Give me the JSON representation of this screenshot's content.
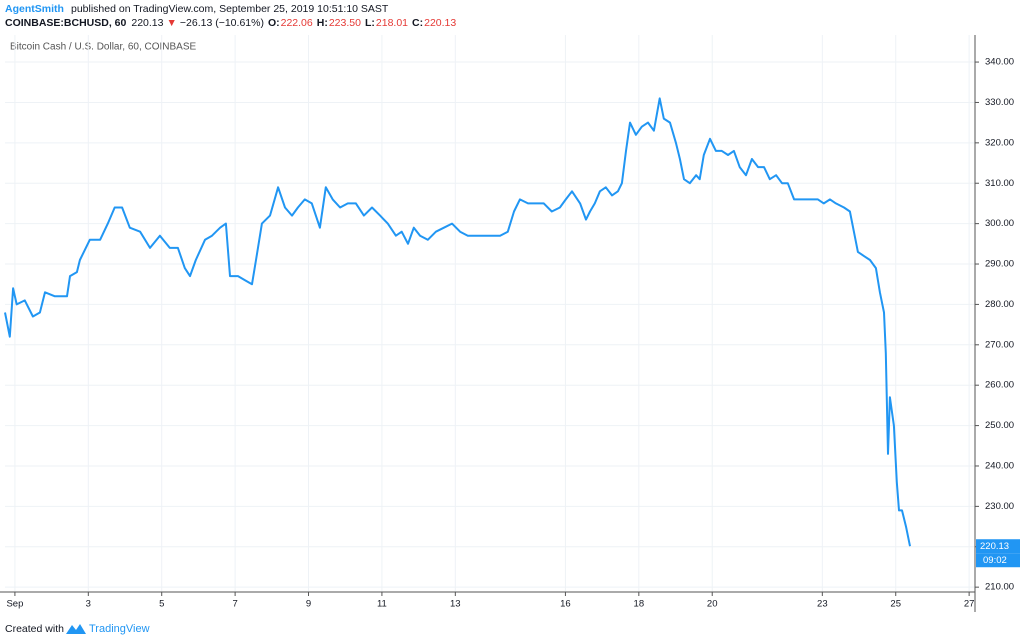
{
  "header": {
    "author": "AgentSmith",
    "published": "published on TradingView.com, September 25, 2019 10:51:10 SAST",
    "symbol": "COINBASE:BCHUSD, 60",
    "last": "220.13",
    "arrow": "▼",
    "change": "−26.13 (−10.61%)",
    "ohlc": [
      {
        "label": "O:",
        "value": "222.06"
      },
      {
        "label": "H:",
        "value": "223.50"
      },
      {
        "label": "L:",
        "value": "218.01"
      },
      {
        "label": "C:",
        "value": "220.13"
      }
    ]
  },
  "footer": {
    "created": "Created with",
    "brand": "TradingView"
  },
  "chart_data": {
    "type": "line",
    "x": [
      0.73,
      0.86,
      0.95,
      1.05,
      1.27,
      1.49,
      1.68,
      1.82,
      2.09,
      2.42,
      2.5,
      2.69,
      2.77,
      3.04,
      3.32,
      3.53,
      3.72,
      3.92,
      4.13,
      4.41,
      4.68,
      4.95,
      5.22,
      5.44,
      5.63,
      5.77,
      5.93,
      6.18,
      6.37,
      6.59,
      6.75,
      6.86,
      7.08,
      7.27,
      7.46,
      7.57,
      7.73,
      7.95,
      8.17,
      8.36,
      8.55,
      8.71,
      8.9,
      9.09,
      9.31,
      9.47,
      9.66,
      9.86,
      10.07,
      10.29,
      10.51,
      10.73,
      10.95,
      11.16,
      11.38,
      11.54,
      11.71,
      11.87,
      12.04,
      12.25,
      12.47,
      12.69,
      12.91,
      13.13,
      13.34,
      13.56,
      13.78,
      14.0,
      14.22,
      14.43,
      14.6,
      14.76,
      14.98,
      15.2,
      15.41,
      15.63,
      15.85,
      16.01,
      16.18,
      16.4,
      16.56,
      16.67,
      16.8,
      16.94,
      17.1,
      17.27,
      17.43,
      17.54,
      17.65,
      17.76,
      17.92,
      18.08,
      18.25,
      18.41,
      18.57,
      18.68,
      18.85,
      19.01,
      19.12,
      19.23,
      19.39,
      19.56,
      19.66,
      19.77,
      19.94,
      20.1,
      20.26,
      20.43,
      20.59,
      20.75,
      20.92,
      21.08,
      21.25,
      21.41,
      21.57,
      21.74,
      21.9,
      22.06,
      22.23,
      22.39,
      22.55,
      22.72,
      22.88,
      23.04,
      23.21,
      23.37,
      23.59,
      23.75,
      23.86,
      23.97,
      24.13,
      24.3,
      24.46,
      24.57,
      24.68,
      24.73,
      24.79,
      24.84,
      24.95,
      25.03,
      25.09,
      25.17,
      25.28,
      25.39
    ],
    "series": [
      {
        "name": "Bitcoin Cash / U.S. Dollar, 60, COINBASE",
        "color": "#2196f3",
        "values": [
          278,
          272,
          284,
          280,
          281,
          277,
          278,
          283,
          282,
          282,
          287,
          288,
          291,
          296,
          296,
          300,
          304,
          304,
          299,
          298,
          294,
          297,
          294,
          294,
          289,
          287,
          291,
          296,
          297,
          299,
          300,
          287,
          287,
          286,
          285,
          291,
          300,
          302,
          309,
          304,
          302,
          304,
          306,
          305,
          299,
          309,
          306,
          304,
          305,
          305,
          302,
          304,
          302,
          300,
          297,
          298,
          295,
          299,
          297,
          296,
          298,
          299,
          300,
          298,
          297,
          297,
          297,
          297,
          297,
          298,
          303,
          306,
          305,
          305,
          305,
          303,
          304,
          306,
          308,
          305,
          301,
          303,
          305,
          308,
          309,
          307,
          308,
          310,
          318,
          325,
          322,
          324,
          325,
          323,
          331,
          326,
          325,
          320,
          316,
          311,
          310,
          312,
          311,
          317,
          321,
          318,
          318,
          317,
          318,
          314,
          312,
          316,
          314,
          314,
          311,
          312,
          310,
          310,
          306,
          306,
          306,
          306,
          306,
          305,
          306,
          305,
          304,
          303,
          298,
          293,
          292,
          291,
          289,
          283,
          278,
          268,
          243,
          257,
          250,
          236,
          229,
          229,
          225,
          220.13
        ]
      }
    ],
    "last_price_label": "220.13",
    "countdown": "09:02",
    "xlim": [
      0.73,
      27.16
    ],
    "xticks": [
      {
        "value": 1,
        "label": "Sep"
      },
      3,
      5,
      7,
      9,
      11,
      13,
      16,
      18,
      20,
      23,
      25,
      27
    ],
    "ylim": [
      208.8,
      346.7
    ],
    "yticks": [
      {
        "value": 210,
        "label": "210.00"
      },
      {
        "value": 220,
        "label": "220.00"
      },
      {
        "value": 230,
        "label": "230.00"
      },
      {
        "value": 240,
        "label": "240.00"
      },
      {
        "value": 250,
        "label": "250.00"
      },
      {
        "value": 260,
        "label": "260.00"
      },
      {
        "value": 270,
        "label": "270.00"
      },
      {
        "value": 280,
        "label": "280.00"
      },
      {
        "value": 290,
        "label": "290.00"
      },
      {
        "value": 300,
        "label": "300.00"
      },
      {
        "value": 310,
        "label": "310.00"
      },
      {
        "value": 320,
        "label": "320.00"
      },
      {
        "value": 330,
        "label": "330.00"
      },
      {
        "value": 340,
        "label": "340.00"
      }
    ],
    "grid": true
  }
}
